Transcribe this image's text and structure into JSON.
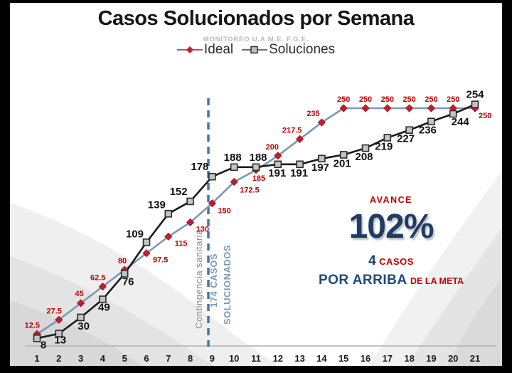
{
  "header": {
    "title": "Casos Solucionados por Semana",
    "subtitle": "MONITOREO U.A.M.E. F.G.E."
  },
  "legend": {
    "items": [
      {
        "label": "Ideal",
        "marker": "diamond-icon",
        "color": "#c81b2d"
      },
      {
        "label": "Soluciones",
        "marker": "square-icon",
        "color": "#bfbfbf"
      }
    ]
  },
  "kpi": {
    "avance": "AVANCE",
    "percent": "102%",
    "cases_value": "4",
    "cases_unit": "CASOS",
    "headline": "POR ARRIBA",
    "headline_suffix": "DE LA META"
  },
  "chart_data": {
    "type": "line",
    "title": "Casos Solucionados por Semana",
    "xlabel": "",
    "ylabel": "",
    "x": [
      1,
      2,
      3,
      4,
      5,
      6,
      7,
      8,
      9,
      10,
      11,
      12,
      13,
      14,
      15,
      16,
      17,
      18,
      19,
      20,
      21
    ],
    "ylim": [
      0,
      260
    ],
    "grid": false,
    "legend_position": "top",
    "series": [
      {
        "name": "Ideal",
        "values": [
          12.5,
          27.5,
          45,
          62.5,
          80,
          97.5,
          115,
          130,
          150,
          172.5,
          185,
          200,
          217.5,
          235,
          250,
          250,
          250,
          250,
          250,
          250,
          250
        ],
        "line_color": "#7b97b8",
        "marker": "diamond",
        "marker_color": "#c81b2d",
        "marker_edge": "#8d1020",
        "label_color": "#c00000",
        "label_size": 11,
        "label_offsets": [
          [
            4,
            -9,
            "end"
          ],
          [
            4,
            -9,
            "end"
          ],
          [
            4,
            -10,
            "end"
          ],
          [
            4,
            -9,
            "end"
          ],
          [
            3,
            -9,
            "end"
          ],
          [
            9,
            13,
            "start"
          ],
          [
            9,
            13,
            "start"
          ],
          [
            8,
            13,
            "start"
          ],
          [
            8,
            14,
            "start"
          ],
          [
            8,
            15,
            "start"
          ],
          [
            4,
            15,
            "middle"
          ],
          [
            -8,
            -9,
            "middle"
          ],
          [
            -11,
            -9,
            "middle"
          ],
          [
            -12,
            -9,
            "middle"
          ],
          [
            0,
            -9,
            "middle"
          ],
          [
            0,
            -9,
            "middle"
          ],
          [
            0,
            -9,
            "middle"
          ],
          [
            0,
            -9,
            "middle"
          ],
          [
            0,
            -9,
            "middle"
          ],
          [
            0,
            -9,
            "middle"
          ],
          [
            5,
            14,
            "start"
          ]
        ]
      },
      {
        "name": "Soluciones",
        "values": [
          8,
          13,
          30,
          49,
          76,
          109,
          139,
          152,
          178,
          188,
          188,
          191,
          191,
          197,
          201,
          208,
          219,
          227,
          236,
          244,
          254
        ],
        "line_color": "#1a1a1a",
        "marker": "square",
        "marker_color": "#c4c4c4",
        "marker_edge": "#2b2b2b",
        "label_color": "#111111",
        "label_size": 15,
        "label_offsets": [
          [
            9,
            14,
            "middle"
          ],
          [
            2,
            14,
            "middle"
          ],
          [
            4,
            17,
            "middle"
          ],
          [
            2,
            16,
            "middle"
          ],
          [
            5,
            16,
            "middle"
          ],
          [
            -4,
            -7,
            "end"
          ],
          [
            -4,
            -8,
            "end"
          ],
          [
            -4,
            -9,
            "end"
          ],
          [
            -5,
            -9,
            "end"
          ],
          [
            -2,
            -9,
            "middle"
          ],
          [
            3,
            -9,
            "middle"
          ],
          [
            -1,
            17,
            "middle"
          ],
          [
            -1,
            17,
            "middle"
          ],
          [
            -2,
            17,
            "middle"
          ],
          [
            -2,
            17,
            "middle"
          ],
          [
            -2,
            17,
            "middle"
          ],
          [
            -5,
            17,
            "middle"
          ],
          [
            -5,
            17,
            "middle"
          ],
          [
            -5,
            17,
            "middle"
          ],
          [
            10,
            16,
            "middle"
          ],
          [
            0,
            -9,
            "middle"
          ]
        ]
      }
    ],
    "annotation": {
      "x": 9,
      "line_color": "#4677ac",
      "texts": [
        {
          "text": "Contingencia sanitaria",
          "color": "#8c8c8c"
        },
        {
          "text": "174 CASOS",
          "color": "#7d99b5"
        },
        {
          "text": "SOLUCIONADOS",
          "color": "#7d99b5"
        }
      ]
    },
    "axis_color": "#b0b0b0",
    "tick_label_color": "#1a1a1a"
  }
}
